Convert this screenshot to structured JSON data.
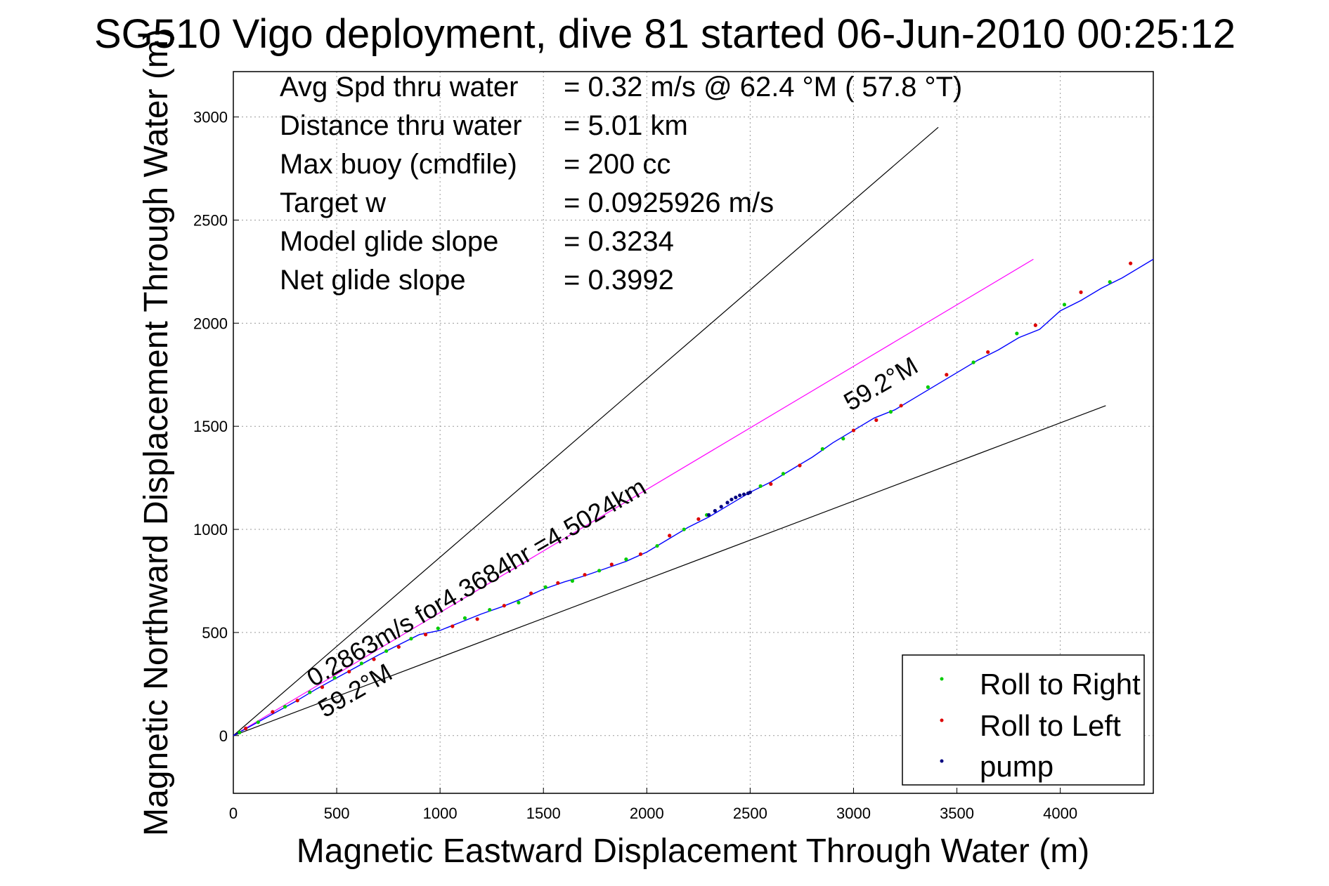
{
  "chart_data": {
    "type": "line",
    "title": "SG510 Vigo deployment, dive 81 started 06-Jun-2010 00:25:12",
    "xlabel": "Magnetic Eastward Displacement Through Water (m)",
    "ylabel": "Magnetic Northward Displacement Through Water (m)",
    "xlim": [
      0,
      4450
    ],
    "ylim": [
      -280,
      3220
    ],
    "xticks": [
      0,
      500,
      1000,
      1500,
      2000,
      2500,
      3000,
      3500,
      4000
    ],
    "yticks": [
      0,
      500,
      1000,
      1500,
      2000,
      2500,
      3000
    ],
    "grid": true,
    "legend_position": "bottom-right",
    "stats": [
      {
        "label": "Avg Spd thru water",
        "value": "=  0.32 m/s @  62.4 °M ( 57.8 °T)"
      },
      {
        "label": "Distance thru water",
        "value": "=  5.01 km"
      },
      {
        "label": "Max buoy (cmdfile)",
        "value": "= 200 cc"
      },
      {
        "label": "Target w",
        "value": "= 0.0925926 m/s"
      },
      {
        "label": "Model glide slope",
        "value": "= 0.3234"
      },
      {
        "label": "Net glide slope",
        "value": "= 0.3992"
      }
    ],
    "annotations": {
      "course_line_label": "0.2863m/s for4.3684hr =4.5024km",
      "upper_heading_label": "59.2°M",
      "lower_heading_label": "59.2°M"
    },
    "reference_lines": [
      {
        "name": "upper envelope",
        "x": [
          0,
          3410
        ],
        "y": [
          0,
          2950
        ],
        "color": "#000000"
      },
      {
        "name": "lower envelope",
        "x": [
          0,
          4220
        ],
        "y": [
          0,
          1600
        ],
        "color": "#000000"
      },
      {
        "name": "course",
        "x": [
          0,
          3870
        ],
        "y": [
          0,
          2310
        ],
        "color": "#ff00ff"
      }
    ],
    "series": [
      {
        "name": "track",
        "color": "#0000ff",
        "x": [
          0,
          100,
          200,
          300,
          400,
          500,
          600,
          700,
          800,
          900,
          1000,
          1100,
          1200,
          1300,
          1400,
          1500,
          1600,
          1700,
          1800,
          1900,
          2000,
          2100,
          2200,
          2300,
          2400,
          2500,
          2600,
          2700,
          2800,
          2900,
          3000,
          3100,
          3200,
          3300,
          3400,
          3500,
          3600,
          3700,
          3800,
          3900,
          4000,
          4100,
          4200,
          4300,
          4450
        ],
        "y": [
          0,
          55,
          110,
          165,
          225,
          280,
          335,
          390,
          440,
          490,
          510,
          550,
          590,
          625,
          665,
          710,
          745,
          775,
          810,
          845,
          890,
          950,
          1010,
          1060,
          1120,
          1180,
          1230,
          1290,
          1350,
          1420,
          1480,
          1540,
          1580,
          1640,
          1700,
          1760,
          1820,
          1870,
          1930,
          1970,
          2060,
          2110,
          2170,
          2220,
          2310
        ]
      }
    ],
    "markers": [
      {
        "name": "Roll to Right",
        "color": "#00cc00",
        "x": [
          30,
          120,
          250,
          370,
          490,
          620,
          740,
          860,
          990,
          1120,
          1240,
          1380,
          1510,
          1640,
          1770,
          1900,
          2050,
          2180,
          2290,
          2550,
          2660,
          2850,
          2950,
          3180,
          3360,
          3580,
          3790,
          4020,
          4240
        ],
        "y": [
          15,
          65,
          140,
          210,
          280,
          350,
          410,
          470,
          520,
          570,
          610,
          645,
          720,
          750,
          800,
          855,
          920,
          1000,
          1070,
          1210,
          1270,
          1390,
          1440,
          1570,
          1690,
          1810,
          1950,
          2090,
          2200
        ]
      },
      {
        "name": "Roll to Left",
        "color": "#dd0000",
        "x": [
          60,
          190,
          310,
          430,
          560,
          680,
          800,
          930,
          1060,
          1180,
          1310,
          1440,
          1570,
          1700,
          1830,
          1970,
          2110,
          2250,
          2600,
          2740,
          3000,
          3110,
          3230,
          3450,
          3650,
          3880,
          4100,
          4340
        ],
        "y": [
          35,
          115,
          170,
          235,
          310,
          370,
          430,
          490,
          530,
          565,
          630,
          690,
          740,
          780,
          830,
          880,
          970,
          1050,
          1220,
          1310,
          1480,
          1530,
          1600,
          1750,
          1860,
          1990,
          2150,
          2290
        ]
      },
      {
        "name": "pump",
        "color": "#000080",
        "x": [
          2300,
          2330,
          2360,
          2390,
          2410,
          2430,
          2450,
          2470,
          2490,
          2500
        ],
        "y": [
          1070,
          1090,
          1110,
          1130,
          1145,
          1155,
          1165,
          1170,
          1175,
          1180
        ]
      }
    ]
  }
}
